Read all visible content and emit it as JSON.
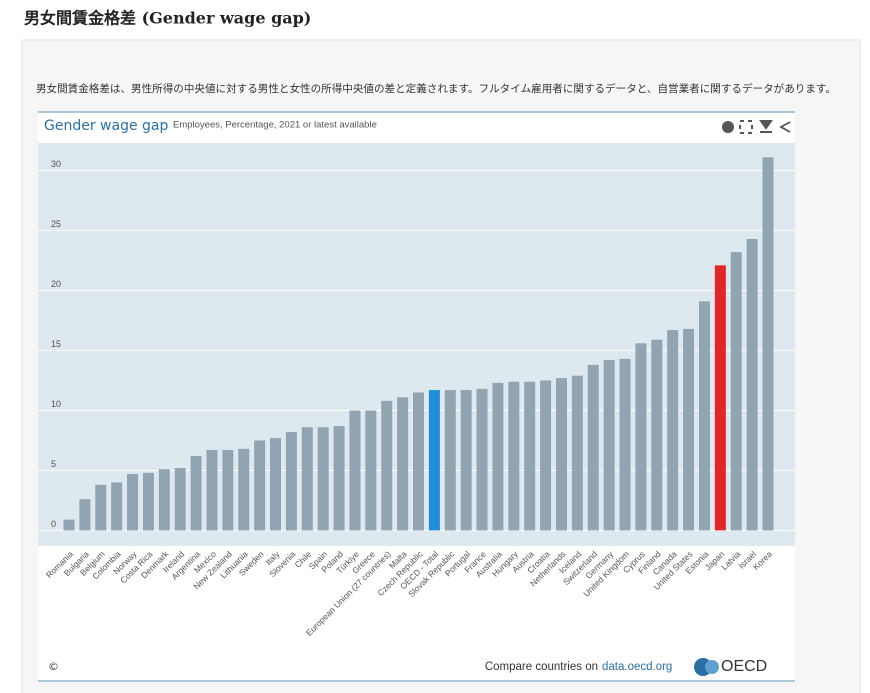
{
  "header": {
    "title": "男女間賃金格差 (Gender wage gap)"
  },
  "description": "男女間賃金格差は、男性所得の中央値に対する男性と女性の所得中央値の差と定義されます。フルタイム雇用者に関するデータと、自営業者に関するデータがあります。",
  "chart_data": {
    "type": "bar",
    "title": "Gender wage gap",
    "subtitle": "Employees, Percentage, 2021 or latest available",
    "categories": [
      "Romania",
      "Bulgaria",
      "Belgium",
      "Colombia",
      "Norway",
      "Costa Rica",
      "Denmark",
      "Ireland",
      "Argentina",
      "Mexico",
      "New Zealand",
      "Lithuania",
      "Sweden",
      "Italy",
      "Slovenia",
      "Chile",
      "Spain",
      "Poland",
      "Türkiye",
      "Greece",
      "European Union (27 countries)",
      "Malta",
      "Czech Republic",
      "OECD - Total",
      "Slovak Republic",
      "Portugal",
      "France",
      "Australia",
      "Hungary",
      "Austria",
      "Croatia",
      "Netherlands",
      "Iceland",
      "Switzerland",
      "Germany",
      "United Kingdom",
      "Cyprus",
      "Finland",
      "Canada",
      "United States",
      "Estonia",
      "Japan",
      "Latvia",
      "Israel",
      "Korea"
    ],
    "values": [
      0.9,
      2.6,
      3.8,
      4.0,
      4.7,
      4.8,
      5.1,
      5.2,
      6.2,
      6.7,
      6.7,
      6.8,
      7.5,
      7.7,
      8.2,
      8.6,
      8.6,
      8.7,
      10.0,
      10.0,
      10.8,
      11.1,
      11.5,
      11.7,
      11.7,
      11.7,
      11.8,
      12.3,
      12.4,
      12.4,
      12.5,
      12.7,
      12.9,
      13.8,
      14.2,
      14.3,
      15.6,
      15.9,
      16.7,
      16.8,
      19.1,
      22.1,
      23.2,
      24.3,
      31.1
    ],
    "color": "#91a4b1",
    "bar_colors": [
      "#91a4b1",
      "#91a4b1",
      "#91a4b1",
      "#91a4b1",
      "#91a4b1",
      "#91a4b1",
      "#91a4b1",
      "#91a4b1",
      "#91a4b1",
      "#91a4b1",
      "#91a4b1",
      "#91a4b1",
      "#91a4b1",
      "#91a4b1",
      "#91a4b1",
      "#91a4b1",
      "#91a4b1",
      "#91a4b1",
      "#91a4b1",
      "#91a4b1",
      "#91a4b1",
      "#91a4b1",
      "#91a4b1",
      "#1e8fd8",
      "#91a4b1",
      "#91a4b1",
      "#91a4b1",
      "#91a4b1",
      "#91a4b1",
      "#91a4b1",
      "#91a4b1",
      "#91a4b1",
      "#91a4b1",
      "#91a4b1",
      "#91a4b1",
      "#91a4b1",
      "#91a4b1",
      "#91a4b1",
      "#91a4b1",
      "#91a4b1",
      "#91a4b1",
      "#e0262b",
      "#91a4b1",
      "#91a4b1",
      "#91a4b1"
    ],
    "ylim": [
      -1.3,
      32.3
    ],
    "yticks": [
      0,
      5,
      10,
      15,
      20,
      25,
      30
    ],
    "grid": true
  },
  "footer": {
    "copyright": "©",
    "compare": "Compare countries on",
    "link": "data.oecd.org",
    "logo": "OECD"
  }
}
